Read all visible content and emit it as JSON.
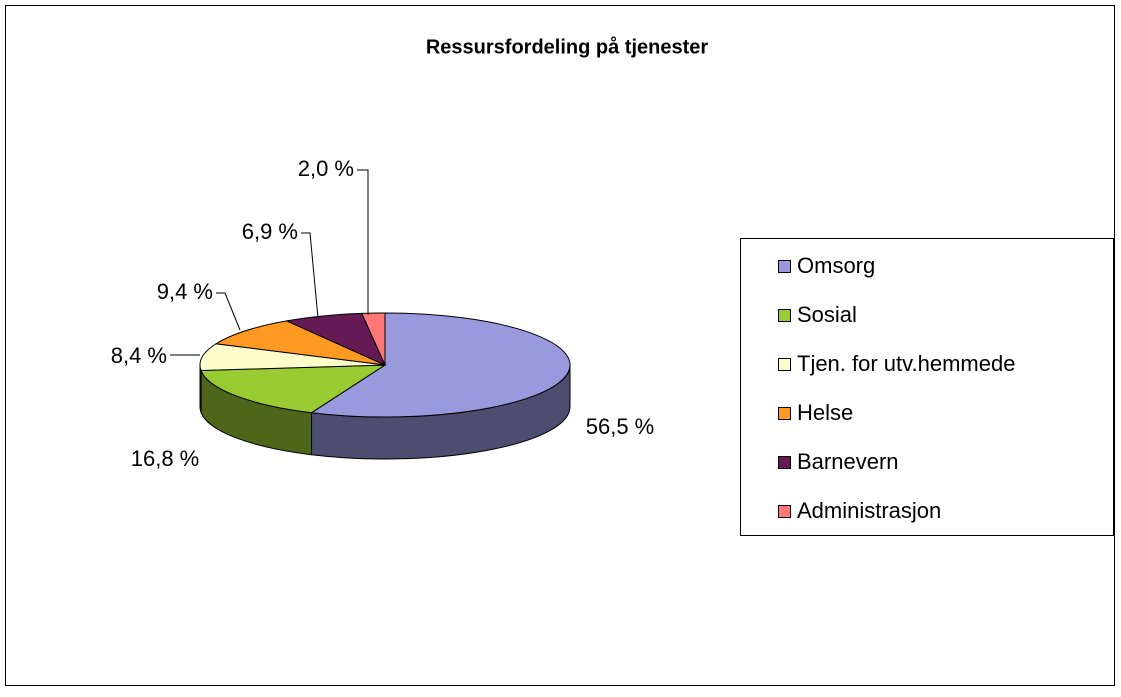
{
  "chart_data": {
    "type": "pie",
    "title": "Ressursfordeling på tjenester",
    "categories": [
      "Omsorg",
      "Sosial",
      "Tjen. for utv.hemmede",
      "Helse",
      "Barnevern",
      "Administrasjon"
    ],
    "values": [
      56.5,
      16.8,
      8.4,
      9.4,
      6.9,
      2.0
    ],
    "value_labels": [
      "56,5 %",
      "16,8 %",
      "8,4 %",
      "9,4 %",
      "6,9 %",
      "2,0 %"
    ],
    "colors": [
      "#9999dd",
      "#99cc33",
      "#ffffcc",
      "#ff9922",
      "#661a55",
      "#ff7777"
    ],
    "legend": "right"
  }
}
